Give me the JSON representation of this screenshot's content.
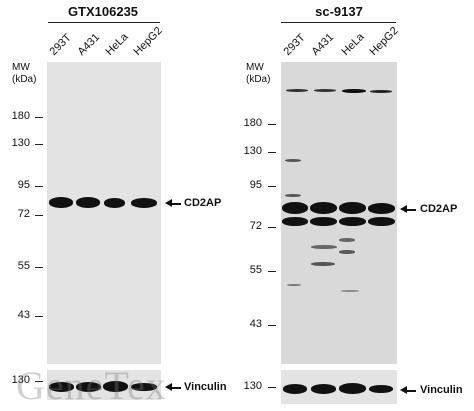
{
  "panels": [
    {
      "title": "GTX106235",
      "lanes": [
        "293T",
        "A431",
        "HeLa",
        "HepG2"
      ],
      "mw_header": [
        "MW",
        "(kDa)"
      ],
      "markers": [
        "180",
        "130",
        "95",
        "72",
        "55",
        "43"
      ],
      "target_label": "CD2AP",
      "loading_marker": "130",
      "loading_label": "Vinculin"
    },
    {
      "title": "sc-9137",
      "lanes": [
        "293T",
        "A431",
        "HeLa",
        "HepG2"
      ],
      "mw_header": [
        "MW",
        "(kDa)"
      ],
      "markers": [
        "180",
        "130",
        "95",
        "72",
        "55",
        "43"
      ],
      "target_label": "CD2AP",
      "loading_marker": "130",
      "loading_label": "Vinculin"
    }
  ],
  "watermark": "GeneTex"
}
